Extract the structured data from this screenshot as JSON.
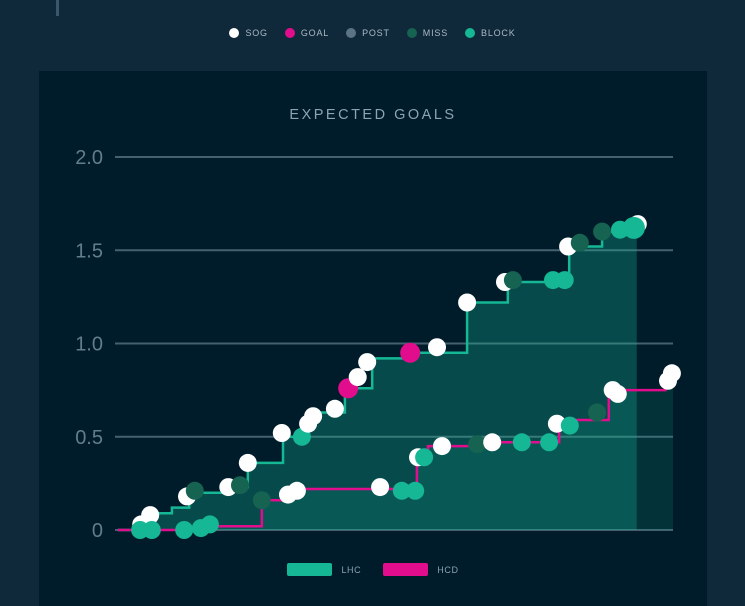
{
  "style": {
    "outer_bg": "#10293a",
    "card_bg": "#001c2b",
    "grid_color": "#45606f",
    "axis_text_color": "#647c8c",
    "title_color": "#8da2b2",
    "legend_text_color": "#a9b8c4",
    "team_legend_text_color": "#8ba0ae",
    "top_tick_color": "#3a576c"
  },
  "top_bar": {
    "event_legend": [
      {
        "label": "SOG",
        "color": "#ffffff"
      },
      {
        "label": "GOAL",
        "color": "#e20d8d"
      },
      {
        "label": "POST",
        "color": "#5c7285"
      },
      {
        "label": "MISS",
        "color": "#156350"
      },
      {
        "label": "BLOCK",
        "color": "#15b795"
      }
    ]
  },
  "chart_data": {
    "type": "line",
    "subtype": "step-after-with-event-markers",
    "title": "EXPECTED GOALS",
    "xlabel": "",
    "ylabel": "",
    "x_unit": "game progress (percent, no ticks shown)",
    "xlim": [
      0,
      100
    ],
    "ylim": [
      0,
      2.0
    ],
    "grid": "horizontal-only",
    "y_axis": {
      "ticks": [
        {
          "label": "2.0",
          "value": 2.0
        },
        {
          "label": "1.5",
          "value": 1.5
        },
        {
          "label": "1.0",
          "value": 1.0
        },
        {
          "label": "0.5",
          "value": 0.5
        },
        {
          "label": "0",
          "value": 0.0
        }
      ]
    },
    "event_types": {
      "SOG": "#ffffff",
      "GOAL": "#e20d8d",
      "POST": "#5c7285",
      "MISS": "#156350",
      "BLOCK": "#15b795"
    },
    "series": [
      {
        "name": "LHC",
        "color": "#15b795",
        "fill_color": "#15b795",
        "fill_opacity": 0.3,
        "extend_to_pct": 93.5,
        "steps": [
          [
            0.5,
            0
          ],
          [
            3.8,
            0.05
          ],
          [
            7.2,
            0.09
          ],
          [
            10.2,
            0.12
          ],
          [
            13.3,
            0.2
          ],
          [
            19.2,
            0.23
          ],
          [
            23.8,
            0.36
          ],
          [
            30.1,
            0.5
          ],
          [
            34.4,
            0.58
          ],
          [
            35.8,
            0.63
          ],
          [
            41.2,
            0.76
          ],
          [
            46.1,
            0.92
          ],
          [
            53.2,
            0.95
          ],
          [
            63.1,
            1.22
          ],
          [
            70.4,
            1.33
          ],
          [
            81.4,
            1.52
          ],
          [
            87.3,
            1.6
          ],
          [
            91.4,
            1.61
          ],
          [
            93.5,
            1.62
          ]
        ],
        "events": [
          {
            "x": 4.7,
            "y": 0.03,
            "type": "SOG"
          },
          {
            "x": 6.3,
            "y": 0.08,
            "type": "SOG"
          },
          {
            "x": 12.9,
            "y": 0.18,
            "type": "SOG"
          },
          {
            "x": 14.3,
            "y": 0.21,
            "type": "MISS"
          },
          {
            "x": 20.3,
            "y": 0.23,
            "type": "SOG"
          },
          {
            "x": 22.4,
            "y": 0.24,
            "type": "MISS"
          },
          {
            "x": 23.8,
            "y": 0.36,
            "type": "SOG"
          },
          {
            "x": 29.9,
            "y": 0.52,
            "type": "SOG"
          },
          {
            "x": 33.5,
            "y": 0.5,
            "type": "BLOCK"
          },
          {
            "x": 34.6,
            "y": 0.57,
            "type": "SOG"
          },
          {
            "x": 35.5,
            "y": 0.61,
            "type": "SOG"
          },
          {
            "x": 39.4,
            "y": 0.65,
            "type": "SOG"
          },
          {
            "x": 41.8,
            "y": 0.76,
            "type": "GOAL",
            "r": 10
          },
          {
            "x": 43.5,
            "y": 0.82,
            "type": "SOG"
          },
          {
            "x": 45.2,
            "y": 0.9,
            "type": "SOG"
          },
          {
            "x": 52.9,
            "y": 0.95,
            "type": "GOAL",
            "r": 10
          },
          {
            "x": 57.7,
            "y": 0.98,
            "type": "SOG"
          },
          {
            "x": 63.1,
            "y": 1.22,
            "type": "SOG"
          },
          {
            "x": 69.9,
            "y": 1.33,
            "type": "SOG"
          },
          {
            "x": 71.3,
            "y": 1.34,
            "type": "MISS"
          },
          {
            "x": 78.5,
            "y": 1.34,
            "type": "BLOCK"
          },
          {
            "x": 80.6,
            "y": 1.34,
            "type": "BLOCK"
          },
          {
            "x": 81.2,
            "y": 1.52,
            "type": "SOG"
          },
          {
            "x": 83.3,
            "y": 1.54,
            "type": "MISS"
          },
          {
            "x": 87.3,
            "y": 1.6,
            "type": "MISS"
          },
          {
            "x": 90.5,
            "y": 1.61,
            "type": "BLOCK"
          },
          {
            "x": 93.7,
            "y": 1.64,
            "type": "SOG"
          },
          {
            "x": 93.0,
            "y": 1.62,
            "type": "BLOCK",
            "r": 11
          }
        ]
      },
      {
        "name": "HCD",
        "color": "#e20d8d",
        "fill_color": "#15b795",
        "fill_opacity": 0.14,
        "extend_to_pct": 100,
        "steps": [
          [
            0.5,
            0
          ],
          [
            15.8,
            0.02
          ],
          [
            26.3,
            0.16
          ],
          [
            30.5,
            0.2
          ],
          [
            33.2,
            0.22
          ],
          [
            54.1,
            0.38
          ],
          [
            56.1,
            0.45
          ],
          [
            63.6,
            0.47
          ],
          [
            79.6,
            0.59
          ],
          [
            88.5,
            0.75
          ],
          [
            98.6,
            0.81
          ]
        ],
        "events": [
          {
            "x": 4.5,
            "y": 0.0,
            "type": "BLOCK"
          },
          {
            "x": 6.6,
            "y": 0.0,
            "type": "BLOCK"
          },
          {
            "x": 12.4,
            "y": 0.0,
            "type": "BLOCK"
          },
          {
            "x": 15.4,
            "y": 0.01,
            "type": "BLOCK"
          },
          {
            "x": 17.0,
            "y": 0.03,
            "type": "BLOCK"
          },
          {
            "x": 26.3,
            "y": 0.16,
            "type": "MISS"
          },
          {
            "x": 31.0,
            "y": 0.19,
            "type": "SOG"
          },
          {
            "x": 32.6,
            "y": 0.21,
            "type": "SOG"
          },
          {
            "x": 47.5,
            "y": 0.23,
            "type": "SOG"
          },
          {
            "x": 51.4,
            "y": 0.21,
            "type": "BLOCK"
          },
          {
            "x": 53.8,
            "y": 0.21,
            "type": "BLOCK"
          },
          {
            "x": 54.3,
            "y": 0.39,
            "type": "SOG"
          },
          {
            "x": 55.4,
            "y": 0.39,
            "type": "BLOCK"
          },
          {
            "x": 58.6,
            "y": 0.45,
            "type": "SOG"
          },
          {
            "x": 64.9,
            "y": 0.46,
            "type": "MISS"
          },
          {
            "x": 67.6,
            "y": 0.47,
            "type": "SOG"
          },
          {
            "x": 72.9,
            "y": 0.47,
            "type": "BLOCK"
          },
          {
            "x": 77.8,
            "y": 0.47,
            "type": "BLOCK"
          },
          {
            "x": 79.2,
            "y": 0.57,
            "type": "SOG"
          },
          {
            "x": 81.5,
            "y": 0.56,
            "type": "BLOCK"
          },
          {
            "x": 86.4,
            "y": 0.63,
            "type": "MISS"
          },
          {
            "x": 89.2,
            "y": 0.75,
            "type": "SOG"
          },
          {
            "x": 90.1,
            "y": 0.73,
            "type": "SOG"
          },
          {
            "x": 99.1,
            "y": 0.8,
            "type": "SOG"
          },
          {
            "x": 99.8,
            "y": 0.84,
            "type": "SOG"
          }
        ]
      }
    ],
    "team_legend": [
      {
        "label": "LHC",
        "color": "#15b795"
      },
      {
        "label": "HCD",
        "color": "#e20d8d"
      }
    ]
  }
}
